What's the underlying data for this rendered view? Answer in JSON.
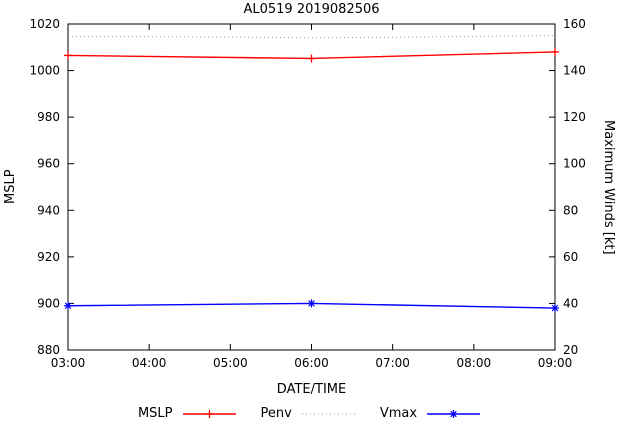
{
  "chart_data": {
    "type": "line",
    "title": "AL0519 2019082506",
    "xlabel": "DATE/TIME",
    "ylabel_left": "MSLP",
    "ylabel_right": "Maximum Winds [kt]",
    "x_ticks": [
      "03:00",
      "04:00",
      "05:00",
      "06:00",
      "07:00",
      "08:00",
      "09:00"
    ],
    "x_hours": [
      3,
      4,
      5,
      6,
      7,
      8,
      9
    ],
    "y_left": {
      "min": 880,
      "max": 1020,
      "ticks": [
        880,
        900,
        920,
        940,
        960,
        980,
        1000,
        1020
      ]
    },
    "y_right": {
      "min": 20,
      "max": 160,
      "ticks": [
        20,
        40,
        60,
        80,
        100,
        120,
        140,
        160
      ]
    },
    "grid": false,
    "legend_position": "bottom-center",
    "series": [
      {
        "name": "MSLP",
        "axis": "left",
        "color": "#ff0000",
        "style": "solid",
        "marker": "plus",
        "x": [
          3,
          6,
          9
        ],
        "values": [
          1006.5,
          1005.2,
          1008.0
        ]
      },
      {
        "name": "Penv",
        "axis": "left",
        "color": "#9a9a9a",
        "style": "dotted",
        "marker": "none",
        "x": [
          3,
          4,
          5,
          6,
          7,
          8,
          9
        ],
        "values": [
          1014.6,
          1014.5,
          1014.4,
          1014.1,
          1014.3,
          1014.6,
          1015.1
        ]
      },
      {
        "name": "Vmax",
        "axis": "right",
        "color": "#0000ff",
        "style": "solid",
        "marker": "star",
        "x": [
          3,
          6,
          9
        ],
        "values": [
          39,
          40,
          38
        ]
      }
    ]
  }
}
